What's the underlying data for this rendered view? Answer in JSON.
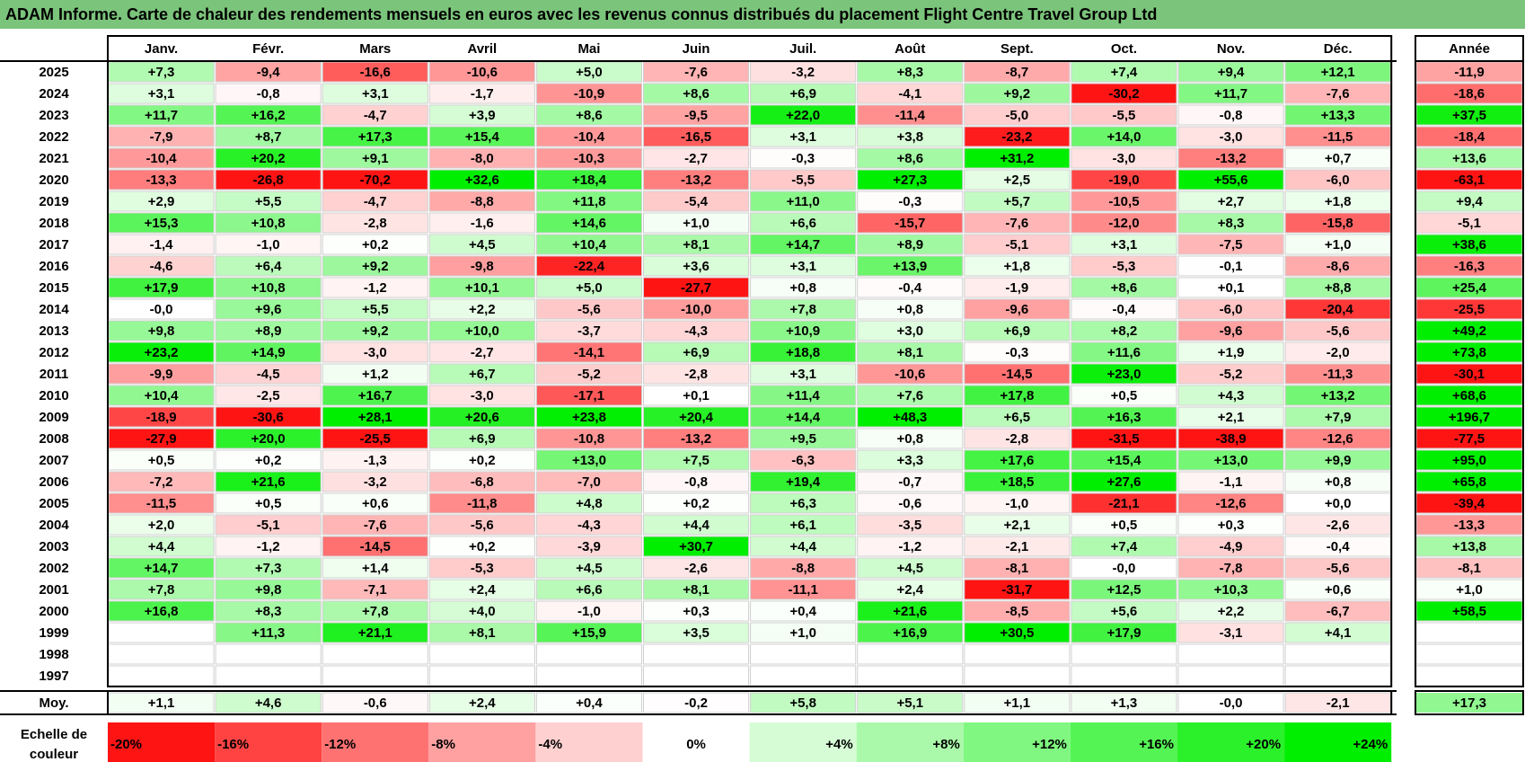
{
  "title": "ADAM Informe. Carte de chaleur des rendements mensuels en euros avec les revenus connus distribués du placement Flight Centre Travel Group Ltd",
  "chart_data": {
    "type": "heatmap",
    "title": "ADAM Informe. Carte de chaleur des rendements mensuels en euros avec les revenus connus distribués du placement Flight Centre Travel Group Ltd",
    "months": [
      "Janv.",
      "Févr.",
      "Mars",
      "Avril",
      "Mai",
      "Juin",
      "Juil.",
      "Août",
      "Sept.",
      "Oct.",
      "Nov.",
      "Déc."
    ],
    "year_header": "Année",
    "rows": [
      {
        "year": "2025",
        "values": [
          "+7,3",
          "-9,4",
          "-16,6",
          "-10,6",
          "+5,0",
          "-7,6",
          "-3,2",
          "+8,3",
          "-8,7",
          "+7,4",
          "+9,4",
          "+12,1"
        ],
        "annual": "-11,9"
      },
      {
        "year": "2024",
        "values": [
          "+3,1",
          "-0,8",
          "+3,1",
          "-1,7",
          "-10,9",
          "+8,6",
          "+6,9",
          "-4,1",
          "+9,2",
          "-30,2",
          "+11,7",
          "-7,6"
        ],
        "annual": "-18,6"
      },
      {
        "year": "2023",
        "values": [
          "+11,7",
          "+16,2",
          "-4,7",
          "+3,9",
          "+8,6",
          "-9,5",
          "+22,0",
          "-11,4",
          "-5,0",
          "-5,5",
          "-0,8",
          "+13,3"
        ],
        "annual": "+37,5"
      },
      {
        "year": "2022",
        "values": [
          "-7,9",
          "+8,7",
          "+17,3",
          "+15,4",
          "-10,4",
          "-16,5",
          "+3,1",
          "+3,8",
          "-23,2",
          "+14,0",
          "-3,0",
          "-11,5"
        ],
        "annual": "-18,4"
      },
      {
        "year": "2021",
        "values": [
          "-10,4",
          "+20,2",
          "+9,1",
          "-8,0",
          "-10,3",
          "-2,7",
          "-0,3",
          "+8,6",
          "+31,2",
          "-3,0",
          "-13,2",
          "+0,7"
        ],
        "annual": "+13,6"
      },
      {
        "year": "2020",
        "values": [
          "-13,3",
          "-26,8",
          "-70,2",
          "+32,6",
          "+18,4",
          "-13,2",
          "-5,5",
          "+27,3",
          "+2,5",
          "-19,0",
          "+55,6",
          "-6,0"
        ],
        "annual": "-63,1"
      },
      {
        "year": "2019",
        "values": [
          "+2,9",
          "+5,5",
          "-4,7",
          "-8,8",
          "+11,8",
          "-5,4",
          "+11,0",
          "-0,3",
          "+5,7",
          "-10,5",
          "+2,7",
          "+1,8"
        ],
        "annual": "+9,4"
      },
      {
        "year": "2018",
        "values": [
          "+15,3",
          "+10,8",
          "-2,8",
          "-1,6",
          "+14,6",
          "+1,0",
          "+6,6",
          "-15,7",
          "-7,6",
          "-12,0",
          "+8,3",
          "-15,8"
        ],
        "annual": "-5,1"
      },
      {
        "year": "2017",
        "values": [
          "-1,4",
          "-1,0",
          "+0,2",
          "+4,5",
          "+10,4",
          "+8,1",
          "+14,7",
          "+8,9",
          "-5,1",
          "+3,1",
          "-7,5",
          "+1,0"
        ],
        "annual": "+38,6"
      },
      {
        "year": "2016",
        "values": [
          "-4,6",
          "+6,4",
          "+9,2",
          "-9,8",
          "-22,4",
          "+3,6",
          "+3,1",
          "+13,9",
          "+1,8",
          "-5,3",
          "-0,1",
          "-8,6"
        ],
        "annual": "-16,3"
      },
      {
        "year": "2015",
        "values": [
          "+17,9",
          "+10,8",
          "-1,2",
          "+10,1",
          "+5,0",
          "-27,7",
          "+0,8",
          "-0,4",
          "-1,9",
          "+8,6",
          "+0,1",
          "+8,8"
        ],
        "annual": "+25,4"
      },
      {
        "year": "2014",
        "values": [
          "-0,0",
          "+9,6",
          "+5,5",
          "+2,2",
          "-5,6",
          "-10,0",
          "+7,8",
          "+0,8",
          "-9,6",
          "-0,4",
          "-6,0",
          "-20,4"
        ],
        "annual": "-25,5"
      },
      {
        "year": "2013",
        "values": [
          "+9,8",
          "+8,9",
          "+9,2",
          "+10,0",
          "-3,7",
          "-4,3",
          "+10,9",
          "+3,0",
          "+6,9",
          "+8,2",
          "-9,6",
          "-5,6"
        ],
        "annual": "+49,2"
      },
      {
        "year": "2012",
        "values": [
          "+23,2",
          "+14,9",
          "-3,0",
          "-2,7",
          "-14,1",
          "+6,9",
          "+18,8",
          "+8,1",
          "-0,3",
          "+11,6",
          "+1,9",
          "-2,0"
        ],
        "annual": "+73,8"
      },
      {
        "year": "2011",
        "values": [
          "-9,9",
          "-4,5",
          "+1,2",
          "+6,7",
          "-5,2",
          "-2,8",
          "+3,1",
          "-10,6",
          "-14,5",
          "+23,0",
          "-5,2",
          "-11,3"
        ],
        "annual": "-30,1"
      },
      {
        "year": "2010",
        "values": [
          "+10,4",
          "-2,5",
          "+16,7",
          "-3,0",
          "-17,1",
          "+0,1",
          "+11,4",
          "+7,6",
          "+17,8",
          "+0,5",
          "+4,3",
          "+13,2"
        ],
        "annual": "+68,6"
      },
      {
        "year": "2009",
        "values": [
          "-18,9",
          "-30,6",
          "+28,1",
          "+20,6",
          "+23,8",
          "+20,4",
          "+14,4",
          "+48,3",
          "+6,5",
          "+16,3",
          "+2,1",
          "+7,9"
        ],
        "annual": "+196,7"
      },
      {
        "year": "2008",
        "values": [
          "-27,9",
          "+20,0",
          "-25,5",
          "+6,9",
          "-10,8",
          "-13,2",
          "+9,5",
          "+0,8",
          "-2,8",
          "-31,5",
          "-38,9",
          "-12,6"
        ],
        "annual": "-77,5"
      },
      {
        "year": "2007",
        "values": [
          "+0,5",
          "+0,2",
          "-1,3",
          "+0,2",
          "+13,0",
          "+7,5",
          "-6,3",
          "+3,3",
          "+17,6",
          "+15,4",
          "+13,0",
          "+9,9"
        ],
        "annual": "+95,0"
      },
      {
        "year": "2006",
        "values": [
          "-7,2",
          "+21,6",
          "-3,2",
          "-6,8",
          "-7,0",
          "-0,8",
          "+19,4",
          "-0,7",
          "+18,5",
          "+27,6",
          "-1,1",
          "+0,8"
        ],
        "annual": "+65,8"
      },
      {
        "year": "2005",
        "values": [
          "-11,5",
          "+0,5",
          "+0,6",
          "-11,8",
          "+4,8",
          "+0,2",
          "+6,3",
          "-0,6",
          "-1,0",
          "-21,1",
          "-12,6",
          "+0,0"
        ],
        "annual": "-39,4"
      },
      {
        "year": "2004",
        "values": [
          "+2,0",
          "-5,1",
          "-7,6",
          "-5,6",
          "-4,3",
          "+4,4",
          "+6,1",
          "-3,5",
          "+2,1",
          "+0,5",
          "+0,3",
          "-2,6"
        ],
        "annual": "-13,3"
      },
      {
        "year": "2003",
        "values": [
          "+4,4",
          "-1,2",
          "-14,5",
          "+0,2",
          "-3,9",
          "+30,7",
          "+4,4",
          "-1,2",
          "-2,1",
          "+7,4",
          "-4,9",
          "-0,4"
        ],
        "annual": "+13,8"
      },
      {
        "year": "2002",
        "values": [
          "+14,7",
          "+7,3",
          "+1,4",
          "-5,3",
          "+4,5",
          "-2,6",
          "-8,8",
          "+4,5",
          "-8,1",
          "-0,0",
          "-7,8",
          "-5,6"
        ],
        "annual": "-8,1"
      },
      {
        "year": "2001",
        "values": [
          "+7,8",
          "+9,8",
          "-7,1",
          "+2,4",
          "+6,6",
          "+8,1",
          "-11,1",
          "+2,4",
          "-31,7",
          "+12,5",
          "+10,3",
          "+0,6"
        ],
        "annual": "+1,0"
      },
      {
        "year": "2000",
        "values": [
          "+16,8",
          "+8,3",
          "+7,8",
          "+4,0",
          "-1,0",
          "+0,3",
          "+0,4",
          "+21,6",
          "-8,5",
          "+5,6",
          "+2,2",
          "-6,7"
        ],
        "annual": "+58,5"
      },
      {
        "year": "1999",
        "values": [
          "",
          "+11,3",
          "+21,1",
          "+8,1",
          "+15,9",
          "+3,5",
          "+1,0",
          "+16,9",
          "+30,5",
          "+17,9",
          "-3,1",
          "+4,1"
        ],
        "annual": ""
      },
      {
        "year": "1998",
        "values": [
          "",
          "",
          "",
          "",
          "",
          "",
          "",
          "",
          "",
          "",
          "",
          ""
        ],
        "annual": ""
      },
      {
        "year": "1997",
        "values": [
          "",
          "",
          "",
          "",
          "",
          "",
          "",
          "",
          "",
          "",
          "",
          ""
        ],
        "annual": ""
      }
    ],
    "average": {
      "label": "Moy.",
      "values": [
        "+1,1",
        "+4,6",
        "-0,6",
        "+2,4",
        "+0,4",
        "-0,2",
        "+5,8",
        "+5,1",
        "+1,1",
        "+1,3",
        "-0,0",
        "-2,1"
      ],
      "annual": "+17,3"
    },
    "color_scale": {
      "label_lines": [
        "Echelle de",
        "couleur"
      ],
      "stops": [
        "-20%",
        "-16%",
        "-12%",
        "-8%",
        "-4%",
        "0%",
        "+4%",
        "+8%",
        "+12%",
        "+16%",
        "+20%",
        "+24%"
      ],
      "stop_values": [
        -20,
        -16,
        -12,
        -8,
        -4,
        0,
        4,
        8,
        12,
        16,
        20,
        24
      ]
    },
    "colors": {
      "title_bar": "#7bc47b",
      "negative": "#ff0000",
      "positive": "#00ee00",
      "neutral": "#ffffff"
    }
  }
}
